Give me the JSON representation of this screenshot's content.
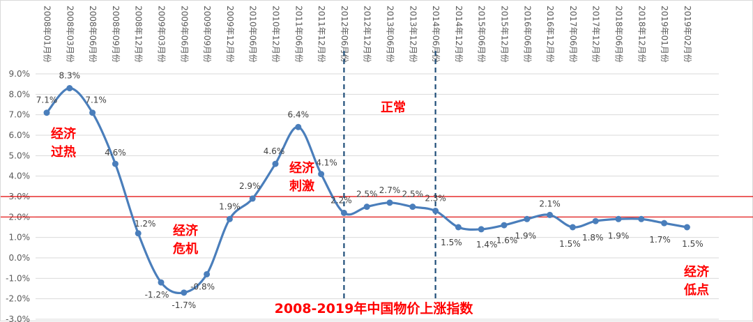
{
  "chart_data": {
    "type": "line",
    "title": "2008-2019年中国物价上涨指数",
    "xlabel": "",
    "ylabel": "",
    "categories": [
      "2008年01月份",
      "2008年03月份",
      "2008年06月份",
      "2008年09月份",
      "2008年12月份",
      "2009年03月份",
      "2009年06月份",
      "2009年09月份",
      "2009年12月份",
      "2010年06月份",
      "2010年12月份",
      "2011年06月份",
      "2011年12月份",
      "2012年06月份",
      "2012年12月份",
      "2013年06月份",
      "2013年12月份",
      "2014年06月份",
      "2014年12月份",
      "2015年06月份",
      "2015年12月份",
      "2016年06月份",
      "2016年12月份",
      "2017年06月份",
      "2017年12月份",
      "2018年06月份",
      "2018年12月份",
      "2019年01月份",
      "2019年02月份"
    ],
    "series": [
      {
        "values": [
          7.1,
          8.3,
          7.1,
          4.6,
          1.2,
          -1.2,
          -1.7,
          -0.8,
          1.9,
          2.9,
          4.6,
          6.4,
          4.1,
          2.2,
          2.5,
          2.7,
          2.5,
          2.3,
          1.5,
          1.4,
          1.6,
          1.9,
          2.1,
          1.5,
          1.8,
          1.9,
          1.9,
          1.7,
          1.5
        ],
        "labels": [
          "7.1%",
          "8.3%",
          "7.1%",
          "4.6%",
          "1.2%",
          "-1.2%",
          "-1.7%",
          "-0.8%",
          "1.9%",
          "2.9%",
          "4.6%",
          "6.4%",
          "4.1%",
          "2.2%",
          "2.5%",
          "2.7%",
          "2.5%",
          "2.3%",
          "1.5%",
          "1.4%",
          "1.6%",
          "1.9%",
          "2.1%",
          "1.5%",
          "1.8%",
          "1.9%",
          "",
          "1.7%",
          "1.5%"
        ],
        "color": "#4a7ebb"
      }
    ],
    "ylim": [
      -3,
      9
    ],
    "yticks": [
      9,
      8,
      7,
      6,
      5,
      4,
      3,
      2,
      1,
      0,
      -1,
      -2,
      -3
    ],
    "ytick_labels": [
      "9.0%",
      "8.0%",
      "7.0%",
      "6.0%",
      "5.0%",
      "4.0%",
      "3.0%",
      "2.0%",
      "1.0%",
      "0.0%",
      "-1.0%",
      "-2.0%",
      "-3.0%"
    ],
    "grid": true,
    "reference_lines": [
      3,
      2
    ],
    "reference_color": "#e00000",
    "vertical_markers": [
      13,
      17
    ],
    "vertical_marker_color": "#1f4e79",
    "annotations": [
      {
        "lines": [
          "经济",
          "过热"
        ]
      },
      {
        "lines": [
          "经济",
          "危机"
        ]
      },
      {
        "lines": [
          "经济",
          "刺激"
        ]
      },
      {
        "lines": [
          "正常"
        ]
      },
      {
        "lines": [
          "经济",
          "低点"
        ]
      }
    ]
  }
}
